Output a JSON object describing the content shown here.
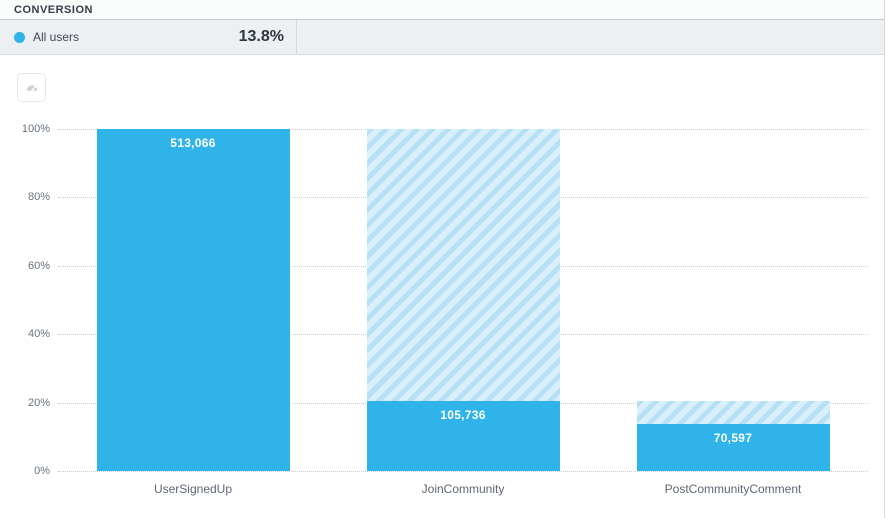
{
  "header": {
    "title": "CONVERSION"
  },
  "legend": {
    "series_label": "All users",
    "conversion_value": "13.8%"
  },
  "toolbar": {
    "gauge_button_icon": "gauge-icon"
  },
  "colors": {
    "accent_blue": "#2FB3E8",
    "hatch_dark": "#B5E1F5",
    "hatch_light": "#D9EFFB",
    "grid_line": "#C9CDD2",
    "axis_text": "#68727E",
    "dark_text": "#363D47"
  },
  "chart_data": {
    "type": "bar",
    "subtype": "funnel-conversion",
    "title": "CONVERSION",
    "series_name": "All users",
    "categories": [
      "UserSignedUp",
      "JoinCommunity",
      "PostCommunityComment"
    ],
    "values": [
      513066,
      105736,
      70597
    ],
    "value_labels": [
      "513,066",
      "105,736",
      "70,597"
    ],
    "pct_of_first": [
      100,
      20.6,
      13.8
    ],
    "solid_pct": [
      100,
      20.61,
      13.76
    ],
    "hatch_top_pct": [
      100,
      100,
      20.61
    ],
    "overall_conversion": "13.8%",
    "ylim": [
      0,
      100
    ],
    "tick_values": [
      0,
      20,
      40,
      60,
      80,
      100
    ],
    "tick_labels": [
      "0%",
      "20%",
      "40%",
      "60%",
      "80%",
      "100%"
    ],
    "grid": "dotted-horizontal",
    "legend_position": "top-left"
  }
}
